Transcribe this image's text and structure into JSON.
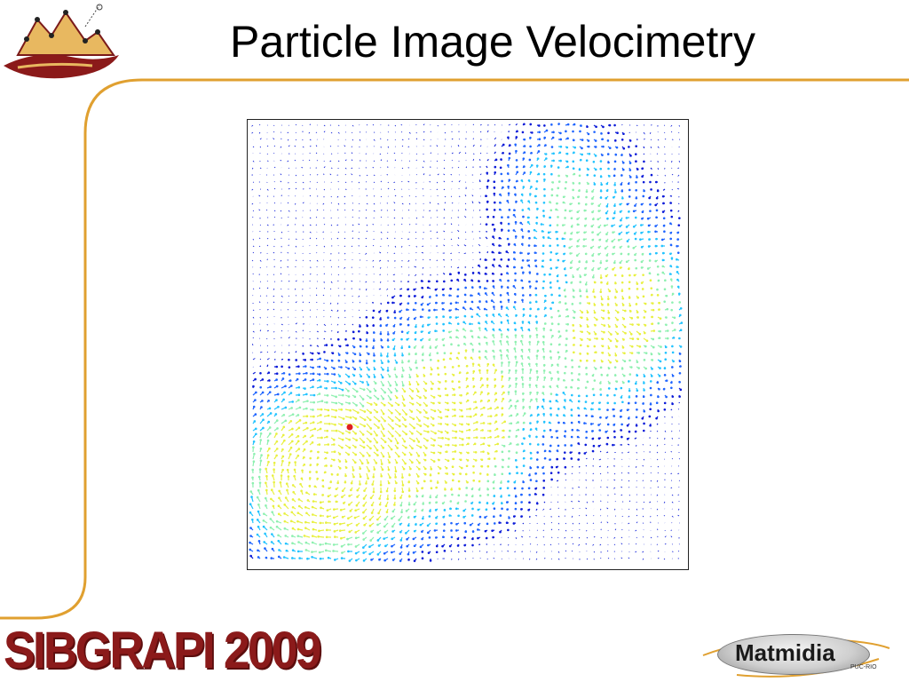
{
  "slide": {
    "title": "Particle Image Velocimetry",
    "footer_left_logo_text": "SIBGRAPI 2009",
    "footer_right_logo_text": "Matmidia",
    "footer_right_logo_subtext": "PUC-RIO"
  },
  "figure": {
    "kind": "quiver-field",
    "colormap": [
      "#0a1ad8",
      "#1e64ff",
      "#22c3ff",
      "#8ef0b0",
      "#e8f040",
      "#e02020"
    ]
  },
  "colors": {
    "accent_line": "#e0a030",
    "brand_dark_red": "#8b1a1a",
    "arrow_blue": "#0a1ad8"
  }
}
